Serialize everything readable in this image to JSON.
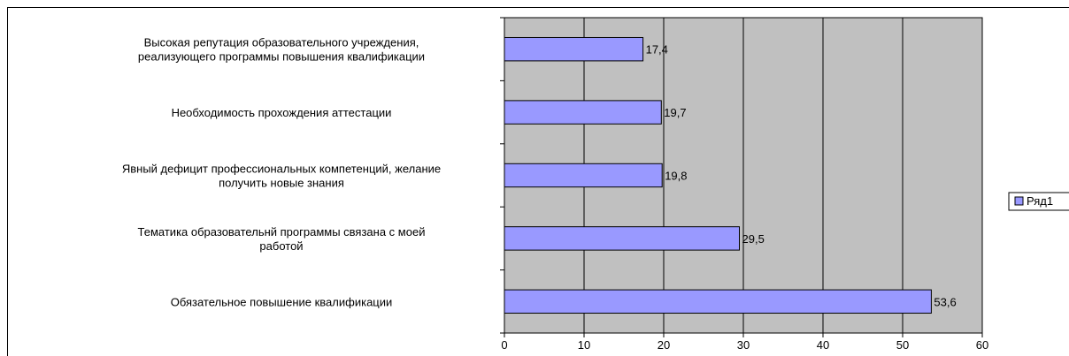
{
  "chart_data": {
    "type": "bar",
    "orientation": "horizontal",
    "categories": [
      "Обязательное повышение квалификации",
      "Тематика образовательнй программы связана с моей работой",
      "Явный дефицит профессиональных компетенций, желание получить новые знания",
      "Необходимость прохождения аттестации",
      "Высокая репутация образовательного учреждения, реализующего программы повышения квалификации"
    ],
    "category_label_lines": [
      [
        "Обязательное повышение квалификации"
      ],
      [
        "Тематика образовательнй программы связана с моей",
        "работой"
      ],
      [
        "Явный дефицит профессиональных компетенций, желание",
        "получить новые знания"
      ],
      [
        "Необходимость прохождения аттестации"
      ],
      [
        "Высокая репутация образовательного учреждения,",
        "реализующего программы повышения квалификации"
      ]
    ],
    "series": [
      {
        "name": "Ряд1",
        "values": [
          53.6,
          29.5,
          19.8,
          19.7,
          17.4
        ]
      }
    ],
    "data_labels": [
      "53,6",
      "29,5",
      "19,8",
      "19,7",
      "17,4"
    ],
    "xlim": [
      0,
      60
    ],
    "x_ticks": [
      "0",
      "10",
      "20",
      "30",
      "40",
      "50",
      "60"
    ],
    "grid": true,
    "legend_position": "right",
    "colors": {
      "plot_background": "#c0c0c0",
      "bar_fill": "#9999ff",
      "bar_stroke": "#000000",
      "grid": "#000000"
    }
  }
}
